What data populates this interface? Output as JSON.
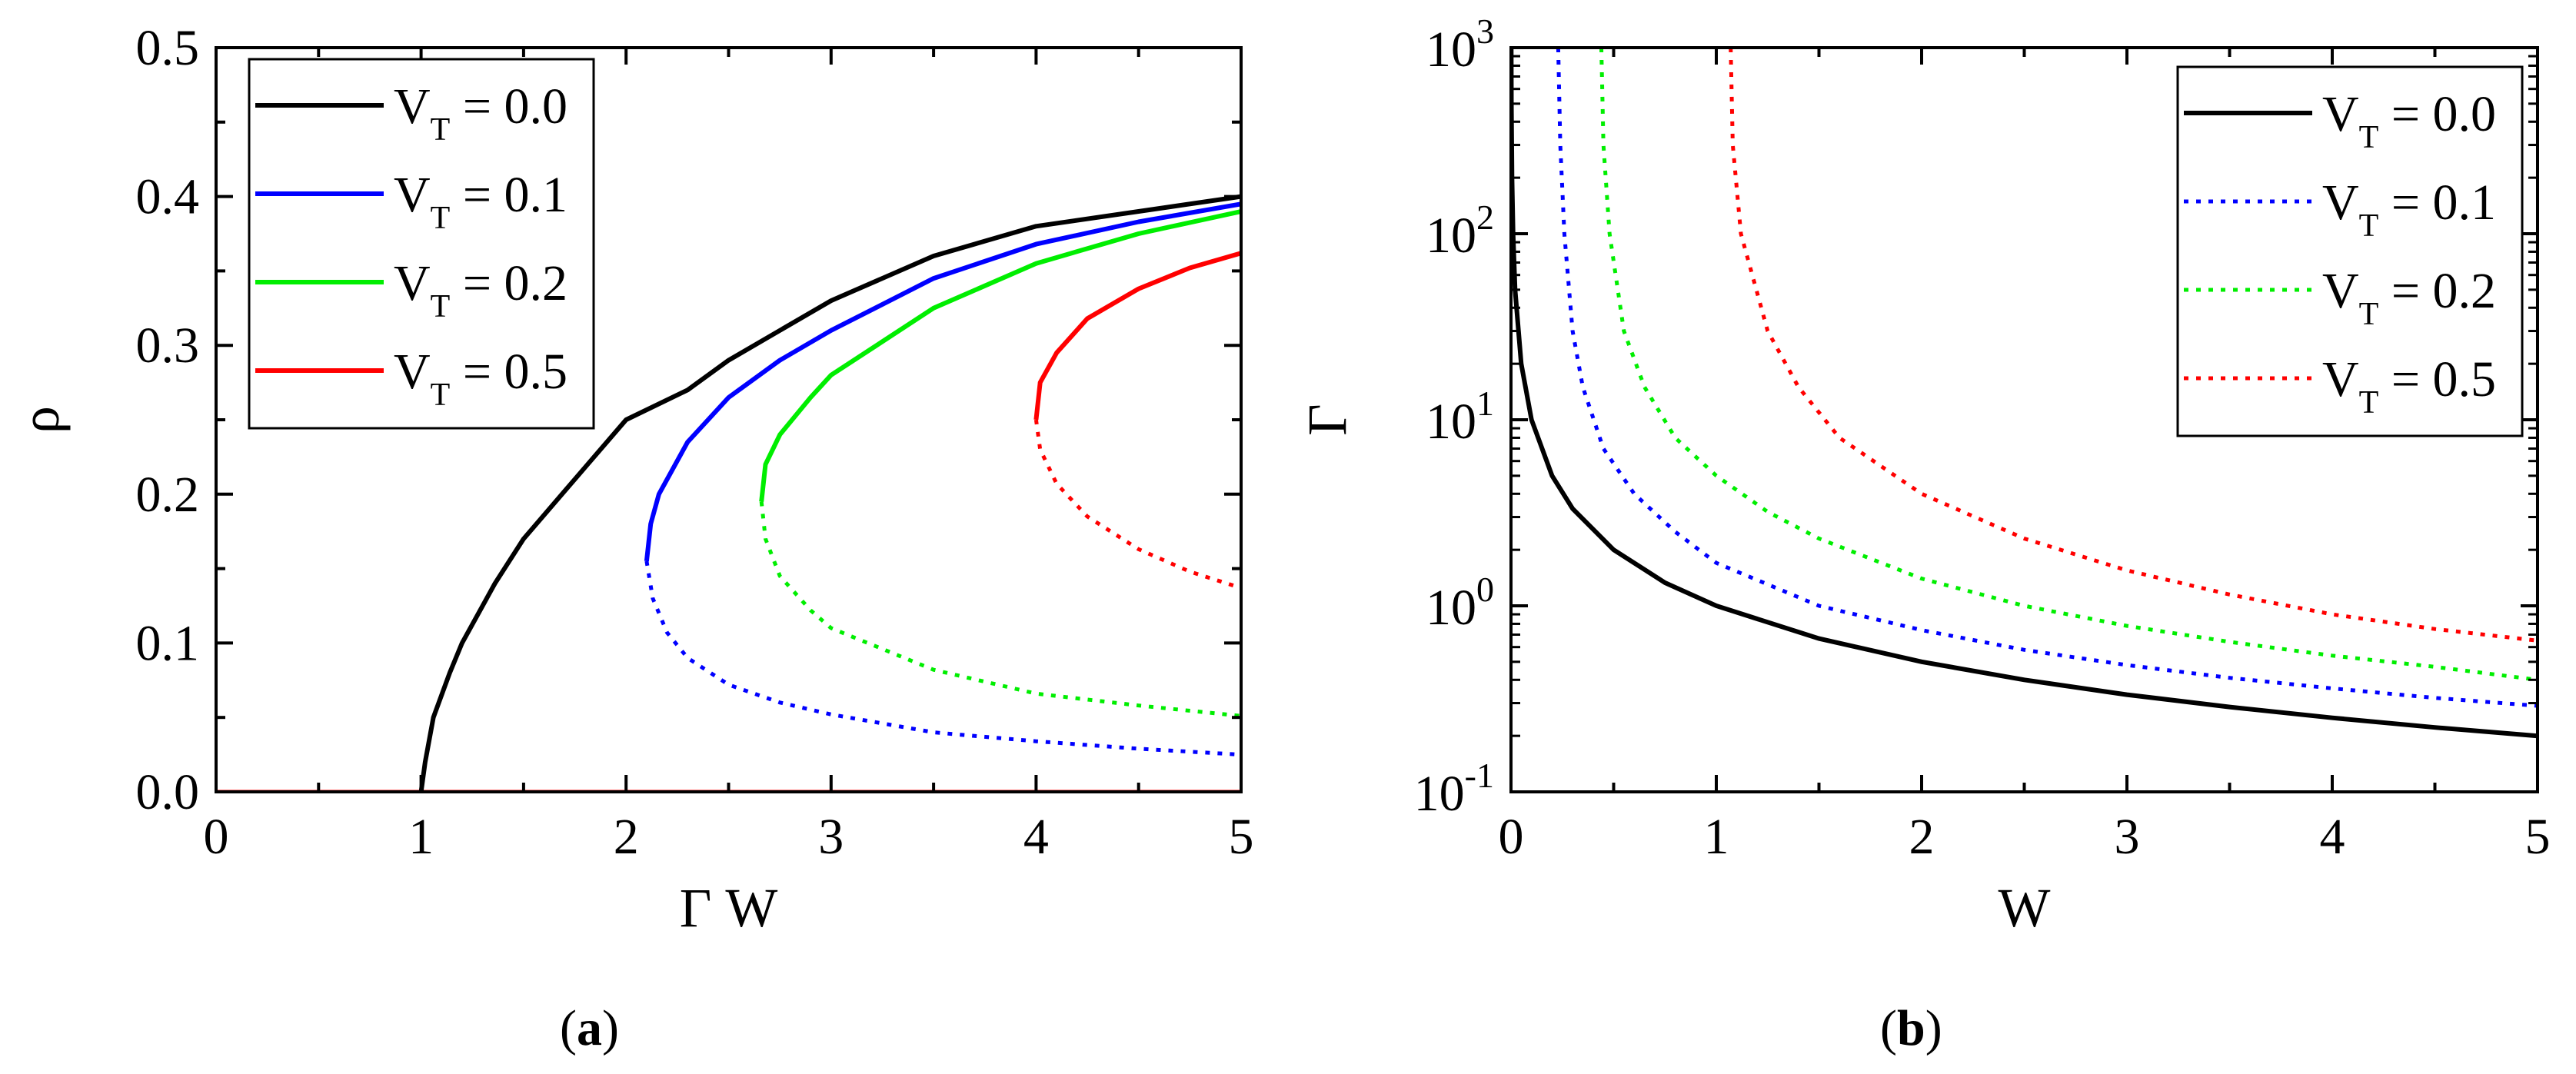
{
  "chart_data": [
    {
      "panel_label": "a",
      "type": "line",
      "xlabel": "Γ W",
      "ylabel": "ρ",
      "xlim": [
        0,
        5
      ],
      "ylim": [
        0,
        0.5
      ],
      "xticks": [
        "0",
        "1",
        "2",
        "3",
        "4",
        "5"
      ],
      "yticks": [
        "0.0",
        "0.1",
        "0.2",
        "0.3",
        "0.4",
        "0.5"
      ],
      "legend_position": "top-left",
      "series": [
        {
          "name": "V_T = 0.0",
          "label_main": "V",
          "label_sub": "T",
          "label_rest": " = 0.0",
          "color": "#000000",
          "solid": [
            [
              1.0,
              0.0
            ],
            [
              1.02,
              0.02
            ],
            [
              1.06,
              0.05
            ],
            [
              1.14,
              0.08
            ],
            [
              1.2,
              0.1
            ],
            [
              1.36,
              0.14
            ],
            [
              1.5,
              0.17
            ],
            [
              1.75,
              0.21
            ],
            [
              2.0,
              0.25
            ],
            [
              2.3,
              0.27
            ],
            [
              2.5,
              0.29
            ],
            [
              3.0,
              0.33
            ],
            [
              3.5,
              0.36
            ],
            [
              4.0,
              0.38
            ],
            [
              4.5,
              0.39
            ],
            [
              5.0,
              0.4
            ]
          ],
          "dotted": []
        },
        {
          "name": "V_T = 0.1",
          "label_main": "V",
          "label_sub": "T",
          "label_rest": " = 0.1",
          "color": "#0000ff",
          "solid": [
            [
              2.1,
              0.155
            ],
            [
              2.12,
              0.18
            ],
            [
              2.16,
              0.2
            ],
            [
              2.3,
              0.235
            ],
            [
              2.5,
              0.265
            ],
            [
              2.75,
              0.29
            ],
            [
              3.0,
              0.31
            ],
            [
              3.5,
              0.345
            ],
            [
              4.0,
              0.368
            ],
            [
              4.5,
              0.383
            ],
            [
              5.0,
              0.395
            ]
          ],
          "dotted": [
            [
              2.1,
              0.155
            ],
            [
              2.13,
              0.13
            ],
            [
              2.2,
              0.107
            ],
            [
              2.3,
              0.09
            ],
            [
              2.5,
              0.072
            ],
            [
              2.75,
              0.06
            ],
            [
              3.0,
              0.052
            ],
            [
              3.5,
              0.04
            ],
            [
              4.0,
              0.034
            ],
            [
              4.5,
              0.029
            ],
            [
              5.0,
              0.025
            ]
          ]
        },
        {
          "name": "V_T = 0.2",
          "label_main": "V",
          "label_sub": "T",
          "label_rest": " = 0.2",
          "color": "#00ee00",
          "solid": [
            [
              2.66,
              0.195
            ],
            [
              2.68,
              0.22
            ],
            [
              2.75,
              0.24
            ],
            [
              2.9,
              0.265
            ],
            [
              3.0,
              0.28
            ],
            [
              3.5,
              0.325
            ],
            [
              4.0,
              0.355
            ],
            [
              4.5,
              0.375
            ],
            [
              5.0,
              0.39
            ]
          ],
          "dotted": [
            [
              2.66,
              0.195
            ],
            [
              2.68,
              0.17
            ],
            [
              2.75,
              0.145
            ],
            [
              2.9,
              0.122
            ],
            [
              3.0,
              0.11
            ],
            [
              3.5,
              0.082
            ],
            [
              4.0,
              0.066
            ],
            [
              4.5,
              0.058
            ],
            [
              5.0,
              0.051
            ]
          ]
        },
        {
          "name": "V_T = 0.5",
          "label_main": "V",
          "label_sub": "T",
          "label_rest": " = 0.5",
          "color": "#ff0000",
          "solid": [
            [
              4.0,
              0.25
            ],
            [
              4.02,
              0.275
            ],
            [
              4.1,
              0.295
            ],
            [
              4.25,
              0.318
            ],
            [
              4.5,
              0.338
            ],
            [
              4.75,
              0.352
            ],
            [
              5.0,
              0.362
            ]
          ],
          "dotted": [
            [
              4.0,
              0.25
            ],
            [
              4.02,
              0.23
            ],
            [
              4.1,
              0.207
            ],
            [
              4.25,
              0.185
            ],
            [
              4.5,
              0.163
            ],
            [
              4.75,
              0.148
            ],
            [
              5.0,
              0.137
            ]
          ]
        }
      ],
      "baseline": {
        "y": 0,
        "color": "#ff0000"
      }
    },
    {
      "panel_label": "b",
      "type": "line",
      "xlabel": "W",
      "ylabel": "Γ",
      "xlim": [
        0,
        5
      ],
      "ylim": [
        0.1,
        1000
      ],
      "yscale": "log",
      "xticks": [
        "0",
        "1",
        "2",
        "3",
        "4",
        "5"
      ],
      "yticks": [
        {
          "base": "10",
          "exp": "-1"
        },
        {
          "base": "10",
          "exp": "0"
        },
        {
          "base": "10",
          "exp": "1"
        },
        {
          "base": "10",
          "exp": "2"
        },
        {
          "base": "10",
          "exp": "3"
        }
      ],
      "legend_position": "top-right",
      "series": [
        {
          "name": "V_T = 0.0",
          "label_main": "V",
          "label_sub": "T",
          "label_rest": " = 0.0",
          "color": "#000000",
          "style": "solid",
          "points": [
            [
              0.001,
              1000
            ],
            [
              0.002,
              500
            ],
            [
              0.005,
              200
            ],
            [
              0.01,
              100
            ],
            [
              0.02,
              50
            ],
            [
              0.05,
              20
            ],
            [
              0.1,
              10
            ],
            [
              0.2,
              5
            ],
            [
              0.3,
              3.33
            ],
            [
              0.5,
              2
            ],
            [
              0.75,
              1.33
            ],
            [
              1.0,
              1.0
            ],
            [
              1.5,
              0.667
            ],
            [
              2.0,
              0.5
            ],
            [
              2.5,
              0.4
            ],
            [
              3.0,
              0.333
            ],
            [
              3.5,
              0.286
            ],
            [
              4.0,
              0.25
            ],
            [
              4.5,
              0.222
            ],
            [
              5.0,
              0.2
            ]
          ]
        },
        {
          "name": "V_T = 0.1",
          "label_main": "V",
          "label_sub": "T",
          "label_rest": " = 0.1",
          "color": "#0000ff",
          "style": "dotted",
          "points": [
            [
              0.23,
              1000
            ],
            [
              0.24,
              300
            ],
            [
              0.26,
              100
            ],
            [
              0.3,
              30
            ],
            [
              0.35,
              15
            ],
            [
              0.45,
              7
            ],
            [
              0.6,
              4
            ],
            [
              0.8,
              2.5
            ],
            [
              1.0,
              1.7
            ],
            [
              1.5,
              1.0
            ],
            [
              2.0,
              0.74
            ],
            [
              2.5,
              0.58
            ],
            [
              3.0,
              0.48
            ],
            [
              3.5,
              0.41
            ],
            [
              4.0,
              0.36
            ],
            [
              4.5,
              0.32
            ],
            [
              5.0,
              0.29
            ]
          ]
        },
        {
          "name": "V_T = 0.2",
          "label_main": "V",
          "label_sub": "T",
          "label_rest": " = 0.2",
          "color": "#00ee00",
          "style": "dotted",
          "points": [
            [
              0.44,
              1000
            ],
            [
              0.45,
              300
            ],
            [
              0.48,
              100
            ],
            [
              0.55,
              30
            ],
            [
              0.65,
              15
            ],
            [
              0.8,
              8
            ],
            [
              1.0,
              5
            ],
            [
              1.25,
              3.2
            ],
            [
              1.5,
              2.3
            ],
            [
              2.0,
              1.4
            ],
            [
              2.5,
              1.0
            ],
            [
              3.0,
              0.78
            ],
            [
              3.5,
              0.64
            ],
            [
              4.0,
              0.54
            ],
            [
              4.5,
              0.47
            ],
            [
              5.0,
              0.4
            ]
          ]
        },
        {
          "name": "V_T = 0.5",
          "label_main": "V",
          "label_sub": "T",
          "label_rest": " = 0.5",
          "color": "#ff0000",
          "style": "dotted",
          "points": [
            [
              1.07,
              1000
            ],
            [
              1.08,
              300
            ],
            [
              1.12,
              100
            ],
            [
              1.25,
              30
            ],
            [
              1.4,
              15
            ],
            [
              1.6,
              8
            ],
            [
              2.0,
              4
            ],
            [
              2.5,
              2.3
            ],
            [
              3.0,
              1.55
            ],
            [
              3.5,
              1.15
            ],
            [
              4.0,
              0.9
            ],
            [
              4.5,
              0.75
            ],
            [
              5.0,
              0.65
            ]
          ]
        }
      ]
    }
  ],
  "captions": {
    "a": "a",
    "b": "b"
  }
}
